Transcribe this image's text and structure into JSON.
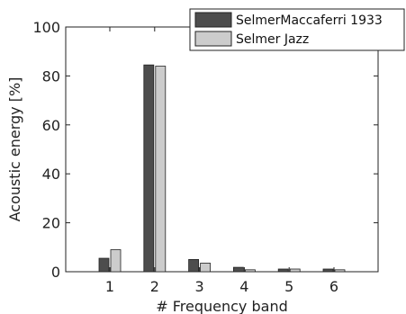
{
  "chart_data": {
    "type": "bar",
    "title": "",
    "xlabel": "# Frequency band",
    "ylabel": "Acoustic energy [%]",
    "categories": [
      "1",
      "2",
      "3",
      "4",
      "5",
      "6"
    ],
    "ylim": [
      0,
      100
    ],
    "yticks": [
      "0",
      "20",
      "40",
      "60",
      "80",
      "100"
    ],
    "grid": false,
    "legend_position": "top-right",
    "series": [
      {
        "name": "SelmerMaccaferri 1933",
        "color": "#4d4d4d",
        "values": [
          5.5,
          84.5,
          5,
          1.8,
          1.1,
          1.1
        ]
      },
      {
        "name": "Selmer Jazz",
        "color": "#cccccc",
        "values": [
          9,
          84,
          3.5,
          0.8,
          1.1,
          0.8
        ]
      }
    ]
  }
}
